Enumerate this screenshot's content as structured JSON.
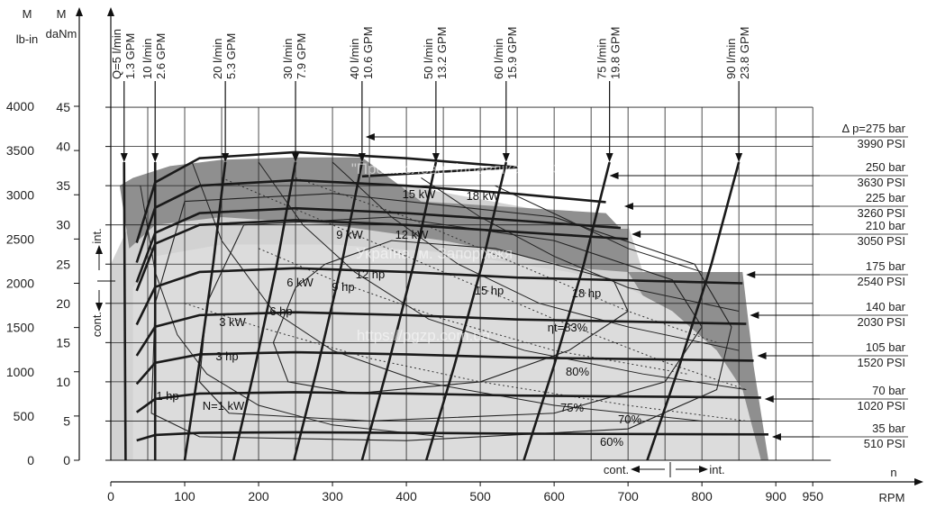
{
  "chart_data": {
    "type": "line",
    "axes": {
      "y_left_outer": {
        "unit_top": "M",
        "unit_bottom": "lb-in",
        "ticks": [
          0,
          500,
          1000,
          1500,
          2000,
          2500,
          3000,
          3500,
          4000
        ]
      },
      "y_left_inner": {
        "unit_top": "M",
        "unit_bottom": "daNm",
        "ticks": [
          0,
          5,
          10,
          15,
          20,
          25,
          30,
          35,
          40,
          45
        ]
      },
      "x": {
        "label": "RPM",
        "unit_top": "n",
        "ticks": [
          0,
          100,
          200,
          300,
          400,
          500,
          600,
          700,
          800,
          900,
          950
        ],
        "xlim": [
          0,
          950
        ]
      }
    },
    "flow_lines": [
      {
        "label": "Q=5 l/min",
        "gpm": "1.3 GPM",
        "arrow_rpm": 18
      },
      {
        "label": "10 l/min",
        "gpm": "2.6 GPM",
        "arrow_rpm": 60
      },
      {
        "label": "20 l/min",
        "gpm": "5.3 GPM",
        "arrow_rpm": 155
      },
      {
        "label": "30 l/min",
        "gpm": "7.9 GPM",
        "arrow_rpm": 250
      },
      {
        "label": "40 l/min",
        "gpm": "10.6 GPM",
        "arrow_rpm": 340
      },
      {
        "label": "50 l/min",
        "gpm": "13.2 GPM",
        "arrow_rpm": 440
      },
      {
        "label": "60 l/min",
        "gpm": "15.9 GPM",
        "arrow_rpm": 535
      },
      {
        "label": "75 l/min",
        "gpm": "19.8 GPM",
        "arrow_rpm": 675
      },
      {
        "label": "90 l/min",
        "gpm": "23.8 GPM",
        "arrow_rpm": 850
      }
    ],
    "pressure_lines": [
      {
        "bar": "Δ p=275 bar",
        "psi": "3990 PSI",
        "torque_daNm": 38.5,
        "max_rpm": 340
      },
      {
        "bar": "250 bar",
        "psi": "3630 PSI",
        "torque_daNm": 35.0,
        "max_rpm": 670
      },
      {
        "bar": "225 bar",
        "psi": "3260 PSI",
        "torque_daNm": 31.5,
        "max_rpm": 690
      },
      {
        "bar": "210 bar",
        "psi": "3050 PSI",
        "torque_daNm": 30.0,
        "max_rpm": 700
      },
      {
        "bar": "175 bar",
        "psi": "2540 PSI",
        "torque_daNm": 24.0,
        "max_rpm": 855
      },
      {
        "bar": "140 bar",
        "psi": "2030 PSI",
        "torque_daNm": 18.5,
        "max_rpm": 860
      },
      {
        "bar": "105 bar",
        "psi": "1520 PSI",
        "torque_daNm": 13.5,
        "max_rpm": 870
      },
      {
        "bar": "70 bar",
        "psi": "1020 PSI",
        "torque_daNm": 8.5,
        "max_rpm": 880
      },
      {
        "bar": "35 bar",
        "psi": "510 PSI",
        "torque_daNm": 3.5,
        "max_rpm": 890
      }
    ],
    "power_labels_kw": [
      "N=1 kW",
      "3 kW",
      "6 kW",
      "9 kW",
      "12 kW",
      "15 kW",
      "18 kW"
    ],
    "power_labels_hp": [
      "1 hp",
      "3 hp",
      "6 hp",
      "9 hp",
      "12 hp",
      "15 hp",
      "18 hp"
    ],
    "efficiency_labels": [
      "ηt=83%",
      "80%",
      "75%",
      "70%",
      "60%"
    ],
    "zone_labels": {
      "int_vertical": "int.",
      "cont_vertical": "cont.",
      "cont_horizontal": "cont.",
      "int_horizontal": "int."
    },
    "watermark": [
      "\"Промислова гідравліка - ПГЗ\"",
      "Україна, м. Запоріжжя",
      "https://pgzp.com.ua"
    ],
    "colors": {
      "dark_zone": "#8f8f8f",
      "light_zone": "#d2d2d2",
      "lines": "#1a1a1a"
    }
  }
}
